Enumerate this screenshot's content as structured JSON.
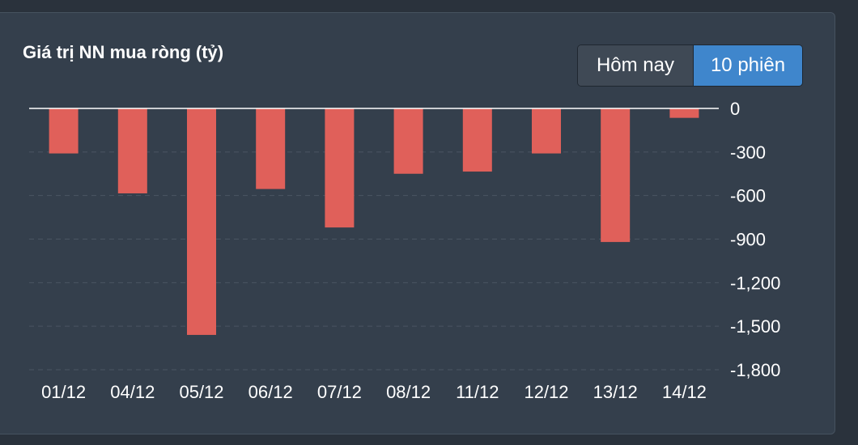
{
  "header": {
    "title": "Giá trị NN mua ròng (tỷ)",
    "buttons": [
      {
        "label": "Hôm nay",
        "active": false
      },
      {
        "label": "10 phiên",
        "active": true
      }
    ]
  },
  "colors": {
    "background": "#343f4c",
    "bar": "#e0605a",
    "active_button": "#3f86cc",
    "zero_line": "#ffffff",
    "gridline": "#4a5562"
  },
  "chart_data": {
    "type": "bar",
    "title": "Giá trị NN mua ròng (tỷ)",
    "categories": [
      "01/12",
      "04/12",
      "05/12",
      "06/12",
      "07/12",
      "08/12",
      "11/12",
      "12/12",
      "13/12",
      "14/12"
    ],
    "values": [
      -310,
      -585,
      -1560,
      -555,
      -820,
      -450,
      -435,
      -310,
      -920,
      -65
    ],
    "ylim": [
      -1800,
      0
    ],
    "yticks": [
      0,
      -300,
      -600,
      -900,
      -1200,
      -1500,
      -1800
    ],
    "ytick_labels": [
      "0",
      "-300",
      "-600",
      "-900",
      "-1,200",
      "-1,500",
      "-1,800"
    ],
    "y_axis_side": "right",
    "grid": true,
    "legend": "none"
  }
}
